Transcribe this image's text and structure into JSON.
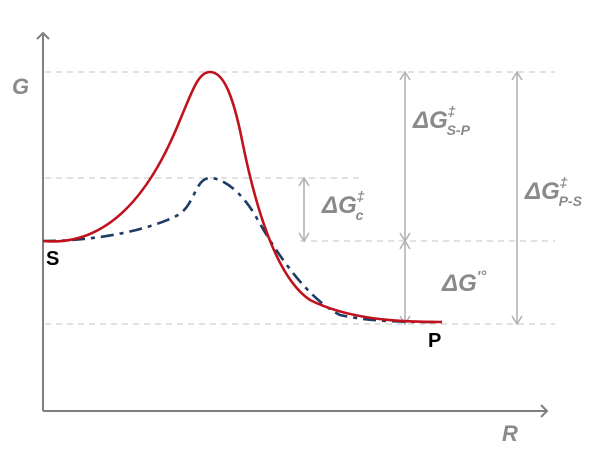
{
  "axes": {
    "y_label": "G",
    "x_label": "R"
  },
  "points": {
    "substrate": "S",
    "product": "P"
  },
  "energy_labels": {
    "dg_sp": {
      "main": "ΔG",
      "sup": "‡",
      "sub": "S-P"
    },
    "dg_c": {
      "main": "ΔG",
      "sup": "‡",
      "sub": "c"
    },
    "dg_ps": {
      "main": "ΔG",
      "sup": "‡",
      "sub": "P-S"
    },
    "dg_std": {
      "main": "ΔG",
      "sup": "'°"
    }
  },
  "colors": {
    "uncatalyzed_curve": "#c0121c",
    "catalyzed_curve": "#1f3c66",
    "axis": "#7f7f7f",
    "guide_lines": "#cfcfcf",
    "arrows": "#b3b3b3",
    "labels": "#8a8a8a"
  }
}
